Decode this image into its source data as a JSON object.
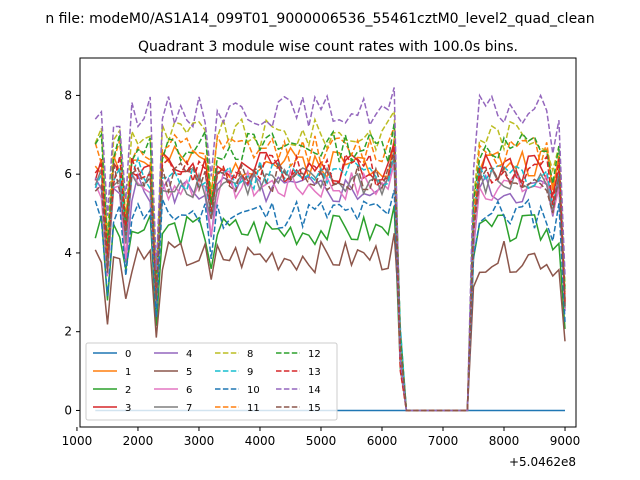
{
  "chart_data": {
    "type": "line",
    "suptitle": "n file: modeM0/AS1A14_099T01_9000006536_55461cztM0_level2_quad_clean",
    "title": "Quadrant 3 module wise count rates with 100.0s bins.",
    "xlabel": "",
    "ylabel": "",
    "x_offset_label": "+5.0462e8",
    "xlim": [
      1050,
      9180
    ],
    "ylim": [
      -0.42,
      8.95
    ],
    "x_ticks": [
      1000,
      2000,
      3000,
      4000,
      5000,
      6000,
      7000,
      8000,
      9000
    ],
    "x_tick_labels": [
      "1000",
      "2000",
      "3000",
      "4000",
      "5000",
      "6000",
      "7000",
      "8000",
      "9000"
    ],
    "y_ticks": [
      0,
      2,
      4,
      6,
      8
    ],
    "y_tick_labels": [
      "0",
      "2",
      "4",
      "6",
      "8"
    ],
    "grid": false,
    "legend_placement": "lower-left",
    "x_range": [
      1300,
      9000
    ],
    "step": 100,
    "gap": [
      6400,
      7400
    ],
    "series": [
      {
        "name": "0",
        "color": "#1f77b4",
        "dash": "solid",
        "flat": true
      },
      {
        "name": "1",
        "color": "#ff7f0e",
        "dash": "solid",
        "base": 6.3
      },
      {
        "name": "2",
        "color": "#2ca02c",
        "dash": "solid",
        "base": 4.6
      },
      {
        "name": "3",
        "color": "#d62728",
        "dash": "solid",
        "base": 6.2
      },
      {
        "name": "4",
        "color": "#9467bd",
        "dash": "solid",
        "base": 5.6
      },
      {
        "name": "5",
        "color": "#8c564b",
        "dash": "solid",
        "base": 3.9
      },
      {
        "name": "6",
        "color": "#e377c2",
        "dash": "solid",
        "base": 5.7
      },
      {
        "name": "7",
        "color": "#7f7f7f",
        "dash": "solid",
        "base": 5.8
      },
      {
        "name": "8",
        "color": "#bcbd22",
        "dash": "dashed",
        "base": 7.0
      },
      {
        "name": "9",
        "color": "#17becf",
        "dash": "dashed",
        "base": 6.0
      },
      {
        "name": "10",
        "color": "#1f77b4",
        "dash": "dashed",
        "base": 5.0
      },
      {
        "name": "11",
        "color": "#ff7f0e",
        "dash": "dashed",
        "base": 6.6
      },
      {
        "name": "12",
        "color": "#2ca02c",
        "dash": "dashed",
        "base": 6.7
      },
      {
        "name": "13",
        "color": "#d62728",
        "dash": "dashed",
        "base": 6.1
      },
      {
        "name": "14",
        "color": "#9467bd",
        "dash": "dashed",
        "base": 7.6
      },
      {
        "name": "15",
        "color": "#8c564b",
        "dash": "dashed",
        "base": 5.9
      }
    ]
  }
}
